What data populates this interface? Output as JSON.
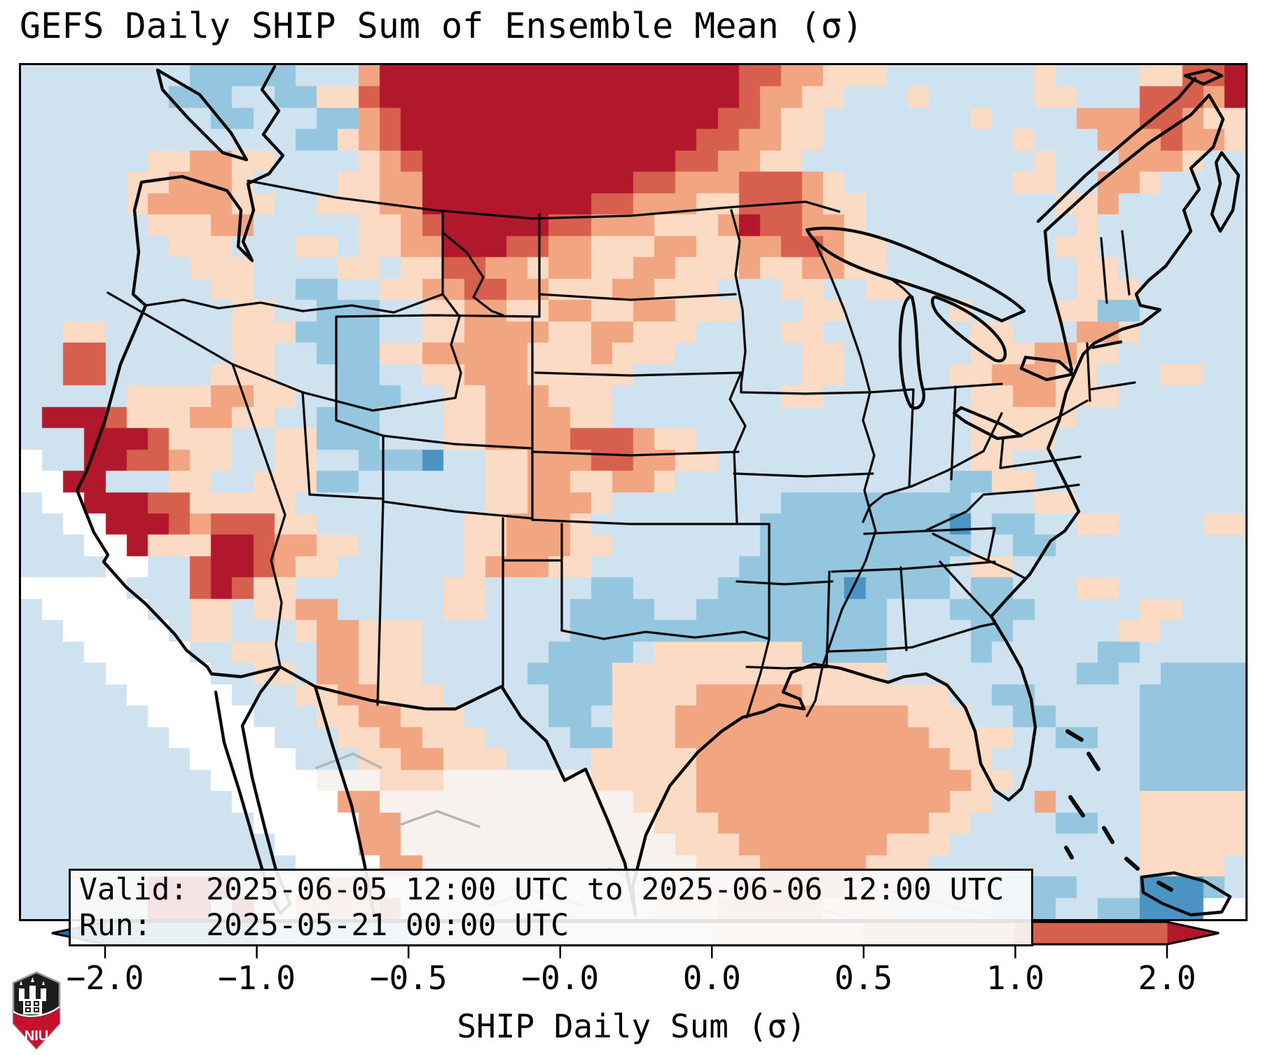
{
  "title": "GEFS Daily SHIP Sum of Ensemble Mean (σ)",
  "info_box": {
    "valid_line": "Valid: 2025-06-05 12:00 UTC to 2025-06-06 12:00 UTC",
    "run_line": "Run:   2025-05-21 00:00 UTC"
  },
  "colorbar": {
    "label": "SHIP Daily Sum (σ)",
    "tick_labels": [
      "−2.0",
      "−1.0",
      "−0.5",
      "−0.0",
      "0.0",
      "0.5",
      "1.0",
      "2.0"
    ],
    "tick_values": [
      -2.0,
      -1.0,
      -0.5,
      -0.0,
      0.0,
      0.5,
      1.0,
      2.0
    ],
    "segment_colors": [
      "#4a94c4",
      "#94c6df",
      "#cfe2ef",
      "#f7f6f4",
      "#fbdbc4",
      "#f2a581",
      "#d6604d"
    ],
    "under_color": "#2267ac",
    "over_color": "#b2182b"
  },
  "logo": {
    "name": "NIU",
    "label": "NIU",
    "shield_black": "#1d1d1d",
    "shield_red": "#c8102e"
  },
  "chart_data": {
    "type": "heatmap",
    "title": "GEFS Daily SHIP Sum of Ensemble Mean (σ)",
    "value_label": "SHIP Daily Sum (σ)",
    "valid": "2025-06-05 12:00 UTC to 2025-06-06 12:00 UTC",
    "run": "2025-05-21 00:00 UTC",
    "bin_edges_sigma": [
      -2.0,
      -1.0,
      -0.5,
      -0.0,
      0.0,
      0.5,
      1.0,
      2.0
    ],
    "colormap": "RdBu_r (discrete, extended both ends)",
    "region": "Continental United States and surroundings",
    "notes": "Grid is a coarse reconstruction of the pixelated ensemble-mean field: dark red maximum over Montana/Dakotas/Saskatchewan, salmon plume down the central plains into Kansas-Oklahoma, orange around Lake Superior and the upper Midwest, red anomalies on the California coast and southern Nevada/Arizona, pale-orange band over the Gulf of Mexico and western Atlantic, light-blue negative anomalies over the Deep South, Texas and the oceans, white no-data band offshore Baja California.",
    "palette": {
      "L": "#cfe2ef",
      "M": "#94c6df",
      "D": "#4a94c4",
      "o": "#fbdbc4",
      "O": "#f2a581",
      "r": "#d6604d",
      "R": "#b2182b",
      "W": "#f8f2ee",
      "w": "#ffffff"
    },
    "palette_meaning": {
      "L": "-0.5 to -0.0",
      "M": "-1.0 to -0.5",
      "D": "-2.0 to -1.0",
      "o": "0.0 to 0.5",
      "O": "0.5 to 1.0",
      "r": "1.0 to 2.0",
      "R": "> 2.0",
      "W": "-0.0 to 0.0",
      "w": "no data / masked"
    },
    "grid": {
      "cols": 58,
      "rows": 40,
      "cells": [
        "LLLLLLLLMMMMMLLLORRRRRRRRRRRRRRRRRrrOOoooLLLLLLLoLLLLoorrR",
        "LLLLLLLMMMLLMMoorRRRRRRRRRRRRRRRRRrOOooLLLoLLLLLooLLLrrrOR",
        "LLLLLLLLLMMLLLMMOrRRRRRRRRRRRRRRRrrOooLLLLLLLoLLLLOOOrrOoo",
        "LLLLLLLLLLLLLMMoOrRRRRRRRRRRRRRRrrOOooLLLLLLLLLoLLLOOOrOOo",
        "LLLLLLooOOooLLLLoOrRRRRRRRRRRRRrrOOooLLLLLLLLLLLoLLLOOOoLL",
        "LLLLLooOOOoLLLLooOORRRRRRRRRRrrOOOrrrOoLLLLLLLLooLLOOoLLLL",
        "LLLLLoOOOOooLLoooOORRRRRRRRrrOOOoorrrOooLLLLLLLLLooOLLLLLL",
        "LLLLLLoooOOLLLLLooOrRRRRRrrOOOoooORrrOOoLLLLLLLLLLoLLLLLLL",
        "LLLLLLLoooLLLooLooOORRRrrOOoooOOooOOrrOooLLLLLLLLooLLLLLLL",
        "LLLLLLLLoooLLLLooLoorrOOoOOooOOoooOooOOooLLLLLLLLLooLLLLLL",
        "LLLLLLLLLooLLMMLLooOOrrOOoooOOoooLLLooLLooLLLLLLLLoooLLLLL",
        "LLLLLLLLLLooLLMMMLLooOOooOOooOOoooLLLooLLLLLoLLLLooMMLLLLL",
        "LLooLLLLLLoooMMMMLLooOOOOooOOoooLLLLooLLLLLLLooLLLOOoLLLLL",
        "LLrrLLLLLLooLLMMMooOOOOOoooOoooLLLLLLooLLLLLLoooOOooLLLLLL",
        "LLrrLLLLLoooLLLMMLLooOOOoooooLLLLLLLLooLLLLLooOOOooLLLooLL",
        "LLLLLooooOOooLLMMMLLooOOOoooLLLLLLLLooLLLLLLLooOOoooLLLLLL",
        "LRRRroooOOooLLMMMLLLooOOOOooLLLLLLLLLLLLLLLLLoooooLLLLLLLL",
        "LLLRRRroooLLooMMMLLLooOOOOrrrOooLLLLLLLLLLLLLooooLLLLLLLLL",
        "wLLRRrrOooLLooLLMMMDLLooOOOrrOOooLLLLLLLLLLLLooLLLLLLLLLLL",
        "wwRRLLLooLLoooMMLLLLLLooOOooOOoLLLLLLLLLLLLLMMooLLLLLLLLLL",
        "LwwRRRrroooooLLLLLLLLLooOOOoLLLLLLLLMMMMMMMMMLLLooLLLLLLLL",
        "LLwwRRRrOrrrooLLLLLLLooOOOoLLLLLLLLMMMMMMMMMDLMMLLooLLLLoo",
        "LLLwwRoooRRrOOooLLLLLooOOOooLLLLLLLMMMMMMMMMMLLMMLLLLLLLLL",
        "LLLLwwLLrRRrOooLLLLLLoOOOooLLLLLLLMMMMMMMMMMLooLLLLLLLLLLL",
        "wwwwwLLLrRrooLLLLLLLooLLLLLMMLLLLMMMMMMDMMMMLMMLLLooLLLLLL",
        "LwwwwwLLooLooOOLLLLLooLLLLMMMMLLMMMMMMMMMLLLMMMMLLLLLooLLL",
        "LLwwwwwLooLLLoOOoooLLLLLLLMMMMMMMMMMMMMMMLLLLMMLLLLLooLLLL",
        "LLLwwwwwLLooLLOOoooLLLLLLMMMMLoooooooMMMMLLLLMLLLLLMMLLLLL",
        "LLLLwwwwwLLooLOOoooLLLLLMMMMoooooooooooooLLLLLLLLLMMLLMMMM",
        "LLLLLwwwwwLLLooOOoooLLLLLMMMooooOOOOOoooooooLLMMLLLLLMMMMM",
        "LLLLLLwwwwwLLLooOOoooLLLLMMLoooOOOOOOOOOOOoooLLMMLLLLMMMMM",
        "LLLLLLLwwwwwLLLooOOoooLLLLMMoooOOOOOOOOOOOOooooLLMMLLMMMMM",
        "LLLLLLLLwwwwwLLLooOOoooLLLLoooooOOOOOOOOOOOOooLLLLLLLMMMMM",
        "LLLLLLLLLwwwwwWWWoooWWWWWWWoooooOOOOOOOOOOOOOooLLLLLLMMMMM",
        "LLLLLLLLLLwwwwwOOWWWWWWWWWWWWoooOOOOOOOOOOOOooLLOLLLLooooo",
        "LLLLLLLLLLLwwwwwOOWWWWWWWWWWWWoooOOOOOOOOOOooLLLLMMLLooooo",
        "LLLLLLLLLLLLwwwwOOWWWWWWWWWWWWWoooOOOOOOOoooLLLLLLLLLooooo",
        "LLLLLLLLLLLLLwwwwOOWWWWWWWWWWWWWoooOOOOOoooLLLLLLLLLLooooL",
        "LLLLLLRRRRLwwwOOOWWWWWWWWWWWWWWoooOOOOOoooLLLLMMMMLLLDDDML",
        "LLLLLLRRRLRwwOOOOrWWWWWWWWWWWWoooOOOOOoooLLLLLMMMLLMMDDDww"
      ]
    }
  }
}
